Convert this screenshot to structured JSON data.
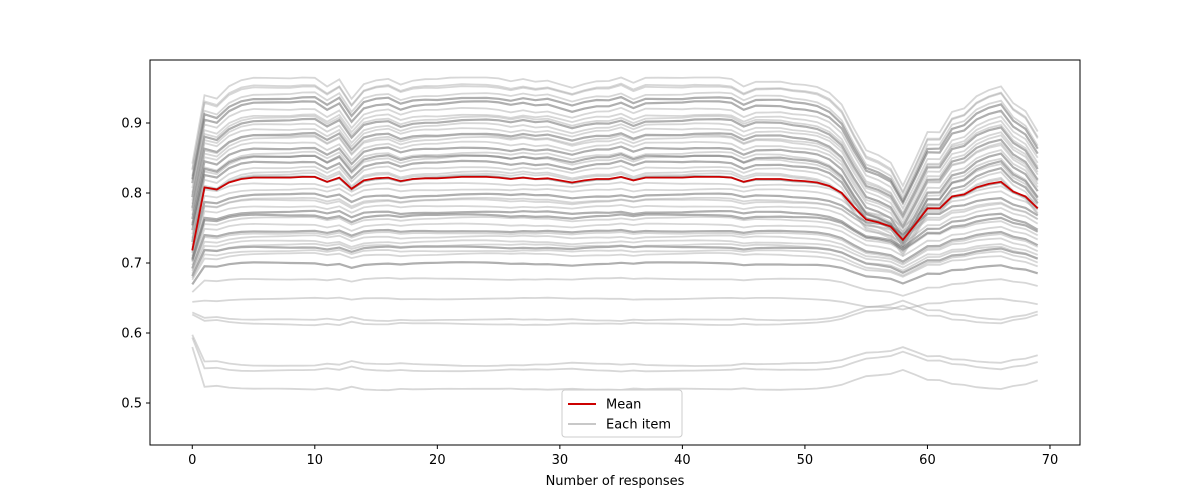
{
  "chart_data": {
    "type": "line",
    "title": "",
    "xlabel": "Number of responses",
    "ylabel": "",
    "xlim": [
      -3.45,
      72.45
    ],
    "ylim": [
      0.44,
      0.99
    ],
    "x_ticks": [
      0,
      10,
      20,
      30,
      40,
      50,
      60,
      70
    ],
    "y_ticks": [
      0.5,
      0.6,
      0.7,
      0.8,
      0.9
    ],
    "x_tick_labels": [
      "0",
      "10",
      "20",
      "30",
      "40",
      "50",
      "60",
      "70"
    ],
    "y_tick_labels": [
      "0.5",
      "0.6",
      "0.7",
      "0.8",
      "0.9"
    ],
    "grid": false,
    "legend_position": "lower center",
    "legend": [
      {
        "label": "Mean",
        "color": "#cc0000"
      },
      {
        "label": "Each item",
        "color": "#c8c8c8"
      }
    ],
    "x_start": 0,
    "x_end": 69,
    "mean_series": {
      "name": "Mean",
      "color": "#cc0000",
      "x": [
        0,
        1,
        2,
        3,
        4,
        5,
        6,
        7,
        8,
        9,
        10,
        11,
        12,
        13,
        14,
        15,
        16,
        17,
        18,
        19,
        20,
        21,
        22,
        23,
        24,
        25,
        26,
        27,
        28,
        29,
        30,
        31,
        32,
        33,
        34,
        35,
        36,
        37,
        38,
        39,
        40,
        41,
        42,
        43,
        44,
        45,
        46,
        47,
        48,
        49,
        50,
        51,
        52,
        53,
        54,
        55,
        56,
        57,
        58,
        59,
        60,
        61,
        62,
        63,
        64,
        65,
        66,
        67,
        68,
        69
      ],
      "values": [
        0.718,
        0.808,
        0.805,
        0.815,
        0.82,
        0.822,
        0.822,
        0.822,
        0.822,
        0.823,
        0.823,
        0.816,
        0.822,
        0.806,
        0.818,
        0.821,
        0.822,
        0.817,
        0.82,
        0.821,
        0.821,
        0.822,
        0.823,
        0.823,
        0.823,
        0.822,
        0.82,
        0.822,
        0.82,
        0.821,
        0.818,
        0.815,
        0.818,
        0.82,
        0.82,
        0.823,
        0.818,
        0.822,
        0.822,
        0.822,
        0.822,
        0.823,
        0.823,
        0.823,
        0.822,
        0.816,
        0.82,
        0.82,
        0.82,
        0.818,
        0.817,
        0.815,
        0.81,
        0.8,
        0.78,
        0.762,
        0.758,
        0.752,
        0.733,
        0.755,
        0.778,
        0.778,
        0.795,
        0.798,
        0.808,
        0.813,
        0.816,
        0.802,
        0.795,
        0.778
      ]
    },
    "items_envelope": {
      "name": "Each item",
      "color": "#b8b8b8",
      "top": 0.963,
      "bottom": 0.52
    }
  }
}
